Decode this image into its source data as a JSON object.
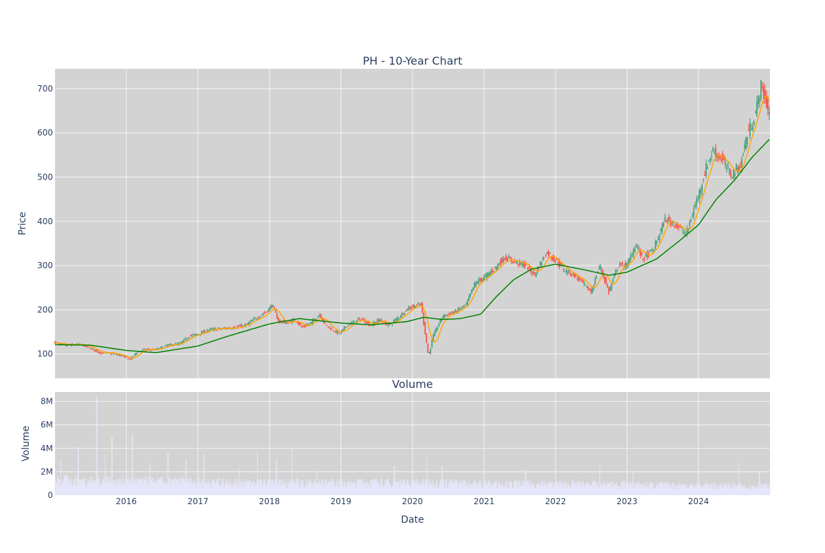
{
  "chart_data": [
    {
      "type": "candlestick",
      "title": "PH - 10-Year Chart",
      "ylabel": "Price",
      "ylim": [
        45,
        745
      ],
      "xlim": [
        "2015-01-02",
        "2024-12-31"
      ],
      "x_ticks": [
        "2016",
        "2017",
        "2018",
        "2019",
        "2020",
        "2021",
        "2022",
        "2023",
        "2024"
      ],
      "y_ticks": [
        100,
        200,
        300,
        400,
        500,
        600,
        700
      ],
      "grid": true,
      "colors": {
        "up": "#3d9970",
        "down": "#ff4136",
        "ma_short": "#ffa500",
        "ma_long": "#008000",
        "plot_bg": "#d3d3d3"
      },
      "price_path": [
        [
          "2015-01-02",
          126
        ],
        [
          "2015-02-15",
          119
        ],
        [
          "2015-04-01",
          121
        ],
        [
          "2015-05-15",
          121
        ],
        [
          "2015-07-01",
          113
        ],
        [
          "2015-08-15",
          103
        ],
        [
          "2015-10-01",
          102
        ],
        [
          "2015-12-01",
          97
        ],
        [
          "2016-01-20",
          87
        ],
        [
          "2016-02-20",
          103
        ],
        [
          "2016-04-01",
          110
        ],
        [
          "2016-06-01",
          110
        ],
        [
          "2016-08-01",
          120
        ],
        [
          "2016-10-01",
          123
        ],
        [
          "2016-11-15",
          140
        ],
        [
          "2017-01-01",
          145
        ],
        [
          "2017-03-01",
          155
        ],
        [
          "2017-05-01",
          157
        ],
        [
          "2017-07-01",
          160
        ],
        [
          "2017-09-01",
          165
        ],
        [
          "2017-11-01",
          183
        ],
        [
          "2017-12-15",
          195
        ],
        [
          "2018-01-15",
          211
        ],
        [
          "2018-02-15",
          175
        ],
        [
          "2018-04-01",
          170
        ],
        [
          "2018-05-15",
          178
        ],
        [
          "2018-06-15",
          160
        ],
        [
          "2018-08-01",
          170
        ],
        [
          "2018-09-15",
          190
        ],
        [
          "2018-10-15",
          165
        ],
        [
          "2018-12-24",
          145
        ],
        [
          "2019-02-01",
          165
        ],
        [
          "2019-04-15",
          180
        ],
        [
          "2019-06-01",
          165
        ],
        [
          "2019-07-15",
          178
        ],
        [
          "2019-09-01",
          165
        ],
        [
          "2019-10-15",
          180
        ],
        [
          "2019-12-15",
          205
        ],
        [
          "2020-02-15",
          212
        ],
        [
          "2020-03-23",
          93
        ],
        [
          "2020-04-15",
          140
        ],
        [
          "2020-06-01",
          185
        ],
        [
          "2020-08-01",
          195
        ],
        [
          "2020-10-01",
          210
        ],
        [
          "2020-11-15",
          260
        ],
        [
          "2020-12-31",
          272
        ],
        [
          "2021-02-15",
          290
        ],
        [
          "2021-04-15",
          318
        ],
        [
          "2021-06-01",
          310
        ],
        [
          "2021-08-01",
          300
        ],
        [
          "2021-09-15",
          280
        ],
        [
          "2021-11-15",
          330
        ],
        [
          "2022-01-01",
          312
        ],
        [
          "2022-02-15",
          290
        ],
        [
          "2022-04-01",
          280
        ],
        [
          "2022-05-15",
          262
        ],
        [
          "2022-07-01",
          240
        ],
        [
          "2022-08-15",
          300
        ],
        [
          "2022-09-30",
          240
        ],
        [
          "2022-11-15",
          300
        ],
        [
          "2023-01-01",
          300
        ],
        [
          "2023-02-15",
          350
        ],
        [
          "2023-03-20",
          315
        ],
        [
          "2023-05-15",
          335
        ],
        [
          "2023-07-15",
          405
        ],
        [
          "2023-09-01",
          395
        ],
        [
          "2023-10-30",
          370
        ],
        [
          "2023-12-31",
          460
        ],
        [
          "2024-02-15",
          530
        ],
        [
          "2024-03-15",
          560
        ],
        [
          "2024-05-01",
          540
        ],
        [
          "2024-06-15",
          505
        ],
        [
          "2024-08-05",
          530
        ],
        [
          "2024-09-01",
          590
        ],
        [
          "2024-10-15",
          640
        ],
        [
          "2024-11-15",
          705
        ],
        [
          "2024-12-31",
          640
        ]
      ],
      "ma_long_path": [
        [
          "2015-01-02",
          121
        ],
        [
          "2015-07-01",
          120
        ],
        [
          "2016-01-01",
          108
        ],
        [
          "2016-06-01",
          103
        ],
        [
          "2017-01-01",
          118
        ],
        [
          "2017-06-01",
          140
        ],
        [
          "2018-01-01",
          168
        ],
        [
          "2018-06-01",
          180
        ],
        [
          "2019-01-01",
          170
        ],
        [
          "2019-06-01",
          166
        ],
        [
          "2019-12-01",
          173
        ],
        [
          "2020-03-01",
          183
        ],
        [
          "2020-06-01",
          178
        ],
        [
          "2020-09-01",
          180
        ],
        [
          "2020-12-15",
          190
        ],
        [
          "2021-03-01",
          228
        ],
        [
          "2021-06-01",
          268
        ],
        [
          "2021-09-01",
          292
        ],
        [
          "2022-01-01",
          303
        ],
        [
          "2022-06-01",
          290
        ],
        [
          "2022-10-01",
          278
        ],
        [
          "2023-01-01",
          285
        ],
        [
          "2023-06-01",
          315
        ],
        [
          "2023-10-01",
          358
        ],
        [
          "2024-01-01",
          392
        ],
        [
          "2024-04-01",
          450
        ],
        [
          "2024-07-01",
          492
        ],
        [
          "2024-10-01",
          545
        ],
        [
          "2024-12-31",
          587
        ]
      ]
    },
    {
      "type": "bar",
      "title": "Volume",
      "ylabel": "Volume",
      "xlabel": "Date",
      "ylim": [
        0,
        8800000
      ],
      "y_ticks": [
        0,
        2000000,
        4000000,
        6000000,
        8000000
      ],
      "y_tick_labels": [
        "0",
        "2M",
        "4M",
        "6M",
        "8M"
      ],
      "x_ticks": [
        "2016",
        "2017",
        "2018",
        "2019",
        "2020",
        "2021",
        "2022",
        "2023",
        "2024"
      ],
      "bar_color": "#e6e6fa",
      "baseline": [
        [
          "2015-01-02",
          1200000
        ],
        [
          "2016-06-01",
          1100000
        ],
        [
          "2018-01-01",
          1000000
        ],
        [
          "2020-01-01",
          1000000
        ],
        [
          "2021-06-01",
          900000
        ],
        [
          "2023-01-01",
          850000
        ],
        [
          "2024-12-31",
          700000
        ]
      ],
      "spikes": [
        [
          "2015-02-01",
          3000000
        ],
        [
          "2015-05-01",
          4100000
        ],
        [
          "2015-08-03",
          8400000
        ],
        [
          "2015-09-15",
          3500000
        ],
        [
          "2015-10-20",
          5000000
        ],
        [
          "2016-02-01",
          5200000
        ],
        [
          "2016-05-01",
          2700000
        ],
        [
          "2016-08-01",
          3600000
        ],
        [
          "2016-11-01",
          3000000
        ],
        [
          "2017-02-01",
          3500000
        ],
        [
          "2017-08-01",
          2300000
        ],
        [
          "2017-11-01",
          3800000
        ],
        [
          "2018-02-06",
          3000000
        ],
        [
          "2018-04-26",
          4000000
        ],
        [
          "2018-09-01",
          2200000
        ],
        [
          "2019-10-01",
          2500000
        ],
        [
          "2020-03-16",
          3300000
        ],
        [
          "2020-06-01",
          2500000
        ],
        [
          "2021-08-01",
          2200000
        ],
        [
          "2022-08-15",
          2600000
        ],
        [
          "2023-02-01",
          2000000
        ],
        [
          "2024-07-25",
          2800000
        ],
        [
          "2024-11-07",
          2000000
        ]
      ]
    }
  ]
}
